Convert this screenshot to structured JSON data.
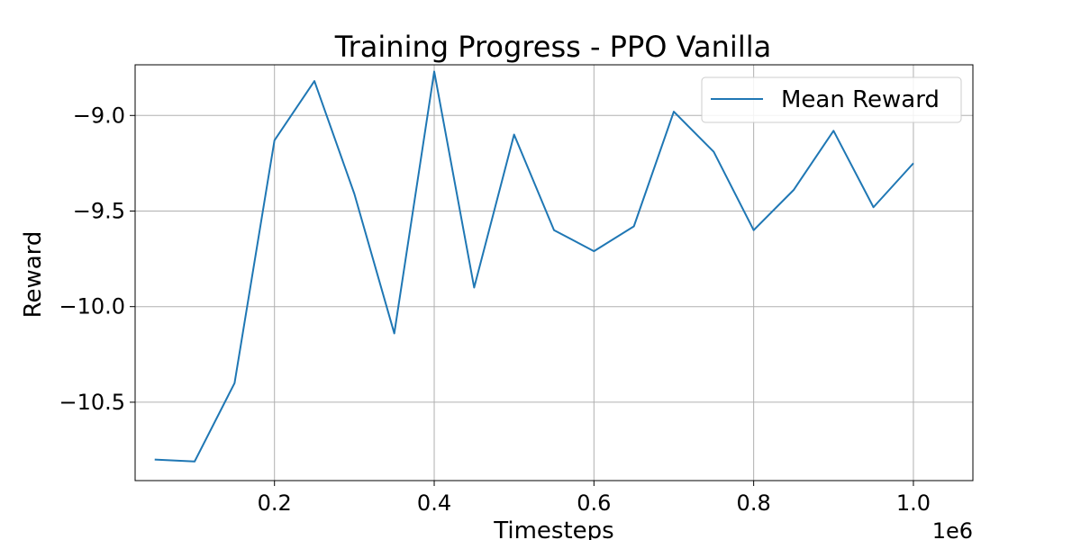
{
  "chart_data": {
    "type": "line",
    "title": "Training Progress - PPO Vanilla",
    "xlabel": "Timesteps",
    "ylabel": "Reward",
    "x_offset_label": "1e6",
    "xlim": [
      0.0255,
      1.0745
    ],
    "ylim": [
      -10.91,
      -8.735
    ],
    "xticks": [
      0.2,
      0.4,
      0.6,
      0.8,
      1.0
    ],
    "xtick_labels": [
      "0.2",
      "0.4",
      "0.6",
      "0.8",
      "1.0"
    ],
    "yticks": [
      -9.0,
      -9.5,
      -10.0,
      -10.5
    ],
    "ytick_labels": [
      "−9.0",
      "−9.5",
      "−10.0",
      "−10.5"
    ],
    "grid": true,
    "legend_position": "top-right",
    "series": [
      {
        "name": "Mean Reward",
        "color": "#1f77b4",
        "x": [
          0.05,
          0.1,
          0.15,
          0.2,
          0.25,
          0.3,
          0.35,
          0.4,
          0.45,
          0.5,
          0.55,
          0.6,
          0.65,
          0.7,
          0.75,
          0.8,
          0.85,
          0.9,
          0.95,
          1.0
        ],
        "y": [
          -10.8,
          -10.81,
          -10.4,
          -9.13,
          -8.82,
          -9.41,
          -10.14,
          -8.77,
          -9.9,
          -9.1,
          -9.6,
          -9.71,
          -9.58,
          -8.98,
          -9.19,
          -9.6,
          -9.39,
          -9.08,
          -9.48,
          -9.25
        ]
      }
    ]
  }
}
